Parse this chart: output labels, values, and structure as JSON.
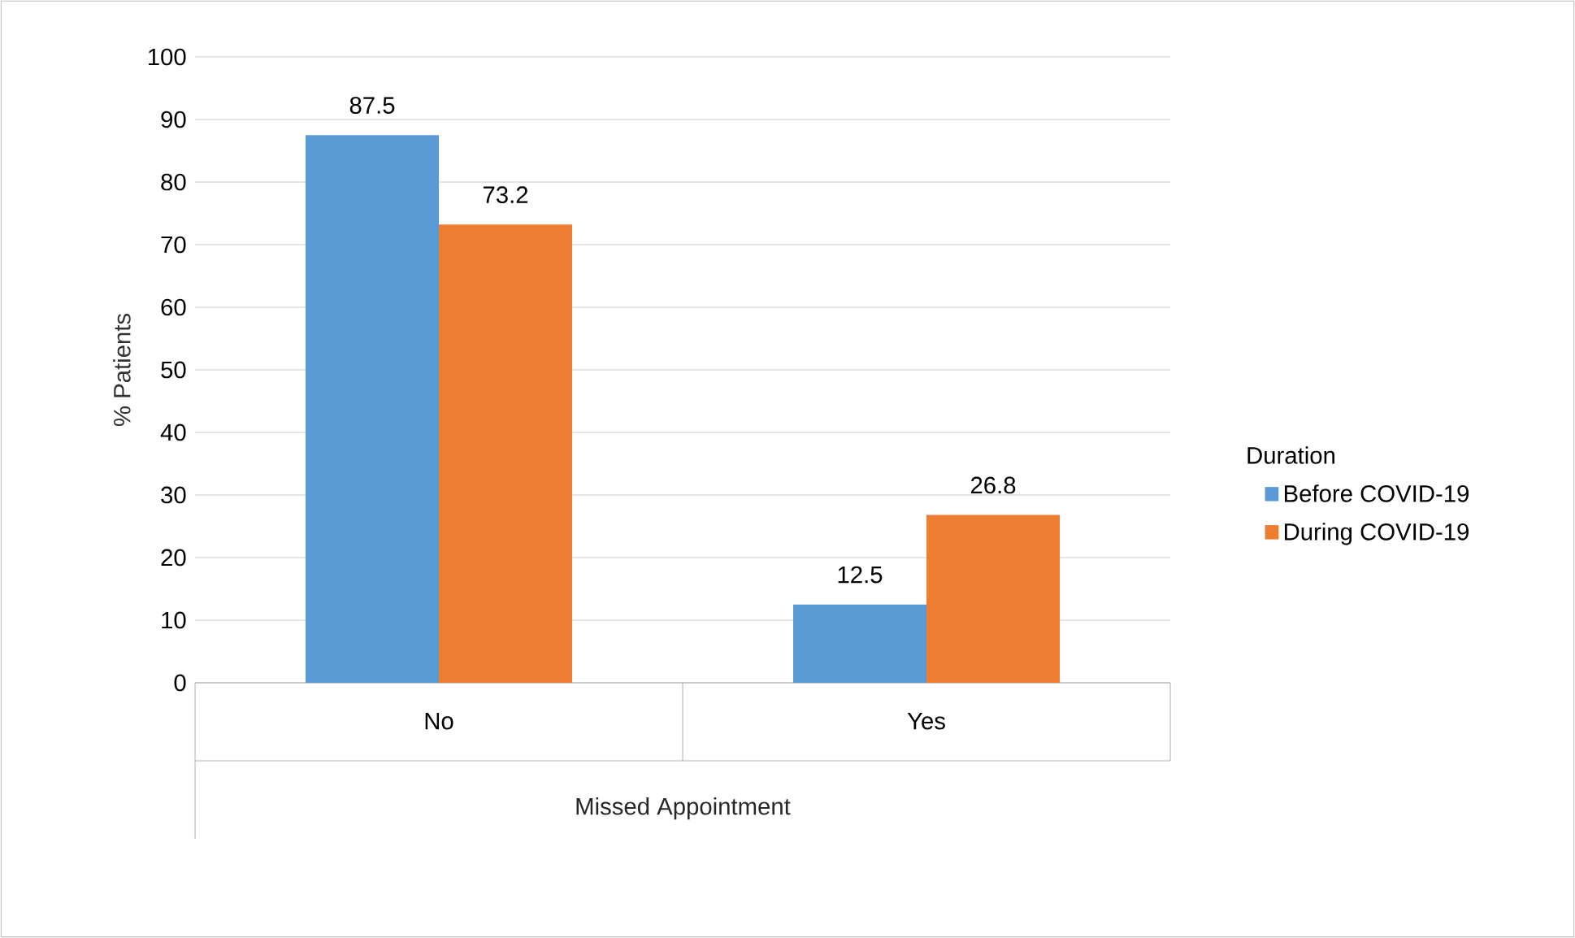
{
  "chart_data": {
    "type": "bar",
    "xlabel": "Missed Appointment",
    "ylabel": "% Patients",
    "legend_title": "Duration",
    "categories": [
      "No",
      "Yes"
    ],
    "series": [
      {
        "name": "Before COVID-19",
        "color": "#5b9bd5",
        "values": [
          87.5,
          12.5
        ]
      },
      {
        "name": "During COVID-19",
        "color": "#ed7d31",
        "values": [
          73.2,
          26.8
        ]
      }
    ],
    "ylim": [
      0,
      100
    ],
    "yticks": [
      0,
      10,
      20,
      30,
      40,
      50,
      60,
      70,
      80,
      90,
      100
    ],
    "grid": "y",
    "legend": "right",
    "data_labels": true
  }
}
